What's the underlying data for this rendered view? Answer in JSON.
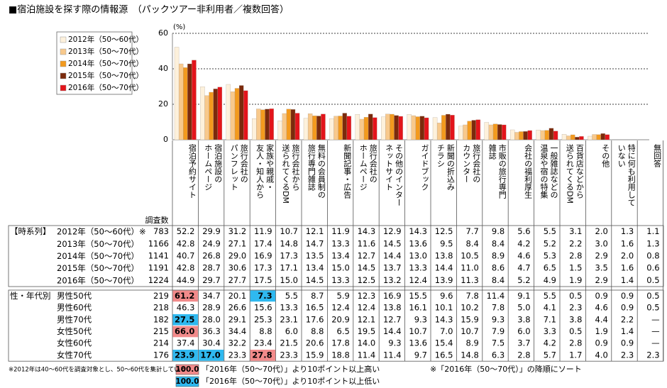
{
  "chart_data": {
    "type": "bar",
    "title": "■宿泊施設を探す際の情報源　（パックツアー非利用者／複数回答）",
    "y_unit": "(%)",
    "ylim": [
      0,
      60
    ],
    "yticks": [
      0,
      20,
      40,
      60
    ],
    "grid": true,
    "categories": [
      "宿泊予約サイト",
      "宿泊施設の\nホームページ",
      "旅行会社の\nパンフレット",
      "家族や親戚・\n友人・知人から",
      "旅行会社から\n送られてくるDM",
      "無料の会員制の\n旅行専門雑誌",
      "新聞記事・広告",
      "旅行会社の\nホームページ",
      "その他のインター\nネットサイト",
      "ガイドブック",
      "新聞の折込み\nチラシ",
      "旅行会社の\nカウンター",
      "市販の旅行専門\n雑誌",
      "会社の福利厚生",
      "一般雑誌などの\n温泉や宿の特集",
      "百貨店などから\n送られてくるDM",
      "その他"
    ],
    "series": [
      {
        "name": "2012年（50～60代）",
        "color": "#fdf1dc",
        "values": [
          52.2,
          29.9,
          31.2,
          11.9,
          10.7,
          12.1,
          11.9,
          14.3,
          12.9,
          14.3,
          12.5,
          7.7,
          9.8,
          5.6,
          5.5,
          3.1,
          2.0
        ],
        "value_labels": [
          "52.2",
          "29.9",
          "31.2",
          "11.9",
          "10.7",
          "12.1",
          "11.9",
          "14.3",
          "12.9",
          "14.3",
          "12.5",
          "7.7",
          "9.8",
          "5.6",
          "5.5",
          "3.1",
          "2.0"
        ]
      },
      {
        "name": "2013年（50～70代）",
        "color": "#f8c98c",
        "values": [
          42.8,
          24.9,
          27.1,
          17.4,
          14.8,
          14.7,
          13.3,
          11.6,
          14.5,
          13.6,
          9.5,
          8.4,
          8.4,
          4.2,
          5.2,
          2.2,
          3.0
        ],
        "value_labels": [
          "42.8",
          "24.9",
          "27.1",
          "17.4",
          "14.8",
          "14.7",
          "13.3",
          "11.6",
          "14.5",
          "13.6",
          "9.5",
          "8.4",
          "8.4",
          "4.2",
          "5.2",
          "2.2",
          "3.0"
        ]
      },
      {
        "name": "2014年（50～70代）",
        "color": "#f39a1e",
        "values": [
          40.7,
          26.8,
          29.0,
          16.9,
          17.3,
          13.5,
          13.4,
          12.7,
          14.4,
          13.0,
          13.8,
          10.5,
          8.9,
          4.6,
          5.3,
          2.8,
          2.9
        ],
        "value_labels": [
          "40.7",
          "26.8",
          "29.0",
          "16.9",
          "17.3",
          "13.5",
          "13.4",
          "12.7",
          "14.4",
          "13.0",
          "13.8",
          "10.5",
          "8.9",
          "4.6",
          "5.3",
          "2.8",
          "2.9"
        ]
      },
      {
        "name": "2015年（50～70代）",
        "color": "#7b2a0c",
        "values": [
          42.8,
          28.7,
          30.6,
          17.3,
          17.1,
          13.4,
          15.0,
          14.5,
          13.7,
          13.3,
          14.4,
          11.0,
          8.6,
          4.7,
          6.5,
          1.5,
          3.5
        ],
        "value_labels": [
          "42.8",
          "28.7",
          "30.6",
          "17.3",
          "17.1",
          "13.4",
          "15.0",
          "14.5",
          "13.7",
          "13.3",
          "14.4",
          "11.0",
          "8.6",
          "4.7",
          "6.5",
          "1.5",
          "3.5"
        ]
      },
      {
        "name": "2016年（50～70代）",
        "color": "#e3141b",
        "values": [
          44.9,
          29.7,
          27.7,
          17.5,
          15.0,
          14.5,
          13.3,
          12.5,
          13.2,
          12.4,
          13.9,
          11.3,
          8.4,
          5.2,
          4.9,
          1.9,
          2.9
        ],
        "value_labels": [
          "44.9",
          "29.7",
          "27.7",
          "17.5",
          "15.0",
          "14.5",
          "13.3",
          "12.5",
          "13.2",
          "12.4",
          "13.9",
          "11.3",
          "8.4",
          "5.2",
          "4.9",
          "1.9",
          "2.9"
        ]
      }
    ]
  },
  "table": {
    "n_header": "調査数",
    "extra_columns": [
      "特に何も利用して\nいない",
      "無回答"
    ],
    "time_series": {
      "label": "【時系列】",
      "note_mark": "※",
      "n": [
        783,
        1166,
        1141,
        1191,
        1224
      ],
      "extra": [
        [
          "1.3",
          "1.1"
        ],
        [
          "1.6",
          "1.3"
        ],
        [
          "2.0",
          "0.8"
        ],
        [
          "1.6",
          "0.6"
        ],
        [
          "1.4",
          "0.5"
        ]
      ]
    },
    "groups": {
      "label": "性・年代別",
      "rows": [
        {
          "label": "男性50代",
          "n": 219,
          "values": [
            "61.2",
            "34.7",
            "20.1",
            "7.3",
            "5.5",
            "8.7",
            "5.9",
            "12.3",
            "16.9",
            "15.5",
            "9.6",
            "7.8",
            "11.4",
            "9.1",
            "5.5",
            "0.5",
            "0.9",
            "0.9",
            "0.5"
          ],
          "colors": [
            "#f28a8a",
            null,
            null,
            "#2fb9f0",
            null,
            null,
            null,
            null,
            null,
            null,
            null,
            null,
            null,
            null,
            null,
            null,
            null,
            null,
            null
          ]
        },
        {
          "label": "男性60代",
          "n": 218,
          "values": [
            "46.3",
            "28.9",
            "26.6",
            "15.6",
            "13.3",
            "16.5",
            "12.4",
            "12.4",
            "13.8",
            "16.1",
            "10.1",
            "10.2",
            "7.8",
            "5.0",
            "4.1",
            "2.3",
            "4.6",
            "0.9",
            "0.5"
          ],
          "colors": [
            null,
            null,
            null,
            null,
            null,
            null,
            null,
            null,
            null,
            null,
            null,
            null,
            null,
            null,
            null,
            null,
            null,
            null,
            null
          ]
        },
        {
          "label": "男性70代",
          "n": 182,
          "values": [
            "27.5",
            "28.0",
            "29.1",
            "25.3",
            "23.1",
            "17.6",
            "20.9",
            "12.1",
            "12.7",
            "9.3",
            "14.3",
            "15.9",
            "9.3",
            "3.8",
            "7.1",
            "3.8",
            "4.4",
            "2.2",
            "—"
          ],
          "colors": [
            "#2fb9f0",
            null,
            null,
            null,
            null,
            null,
            null,
            null,
            null,
            null,
            null,
            null,
            null,
            null,
            null,
            null,
            null,
            null,
            null
          ]
        },
        {
          "label": "女性50代",
          "n": 215,
          "values": [
            "66.0",
            "36.3",
            "34.4",
            "8.8",
            "6.0",
            "8.8",
            "6.5",
            "19.5",
            "14.4",
            "10.7",
            "7.0",
            "10.7",
            "7.9",
            "6.0",
            "3.3",
            "0.5",
            "1.9",
            "1.4",
            "—"
          ],
          "colors": [
            "#f28a8a",
            null,
            null,
            null,
            null,
            null,
            null,
            null,
            null,
            null,
            null,
            null,
            null,
            null,
            null,
            null,
            null,
            null,
            null
          ]
        },
        {
          "label": "女性60代",
          "n": 214,
          "values": [
            "37.4",
            "30.4",
            "32.2",
            "23.4",
            "21.5",
            "20.6",
            "17.8",
            "14.0",
            "9.3",
            "13.6",
            "15.4",
            "8.9",
            "7.5",
            "3.7",
            "4.2",
            "2.8",
            "0.9",
            "0.9",
            "—"
          ],
          "colors": [
            null,
            null,
            null,
            null,
            null,
            null,
            null,
            null,
            null,
            null,
            null,
            null,
            null,
            null,
            null,
            null,
            null,
            null,
            null
          ]
        },
        {
          "label": "女性70代",
          "n": 176,
          "values": [
            "23.9",
            "17.0",
            "23.3",
            "27.8",
            "23.3",
            "15.9",
            "18.8",
            "11.4",
            "11.4",
            "9.7",
            "16.5",
            "14.8",
            "6.3",
            "2.8",
            "5.7",
            "1.7",
            "4.0",
            "2.3",
            "2.3"
          ],
          "colors": [
            "#2fb9f0",
            "#2fb9f0",
            null,
            "#f28a8a",
            null,
            null,
            null,
            null,
            null,
            null,
            null,
            null,
            null,
            null,
            null,
            null,
            null,
            null,
            null
          ]
        }
      ]
    },
    "legend": [
      {
        "sample": "100.0",
        "color": "#f28a8a",
        "text": "「2016年（50～70代）」より10ポイント以上高い"
      },
      {
        "sample": "100.0",
        "color": "#2fb9f0",
        "text": "「2016年（50～70代）」より10ポイント以上低い"
      }
    ]
  },
  "footnotes": [
    "※2012年は40～60代を調査対象とし、50～60代を集計している",
    "※「2016年（50～70代）」の降順にソート"
  ]
}
